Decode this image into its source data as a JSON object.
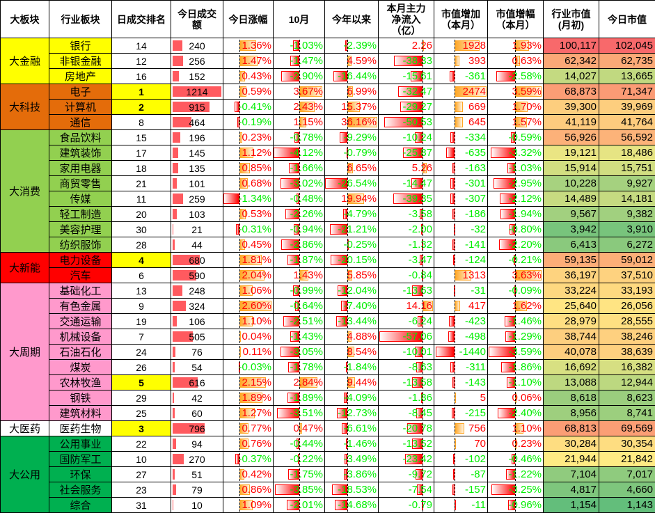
{
  "headers": [
    "大板块",
    "行业板块",
    "日成交排名",
    "今日成交\n额",
    "今日涨幅",
    "10月",
    "今年以来",
    "本月主力\n净流入\n（亿）",
    "市值增加\n（本月）",
    "市值增幅\n（本月）",
    "行业市值\n(月初)",
    "今日市值"
  ],
  "colors": {
    "positive": "#ff0000",
    "negative": "#00ee00",
    "top5_rank": "#ffff00",
    "volume_bar": "#ff5a5f",
    "pos_bar": "#ffa726",
    "neg_bar": "#ff0000",
    "heat_low": "#63be7b",
    "heat_mid": "#ffeb84",
    "heat_high": "#f8696b"
  },
  "groups": [
    {
      "name": "大金融",
      "color": "#ffff00",
      "rows": [
        {
          "name": "银行",
          "rank": 14,
          "vol": 240,
          "today": "1.36%",
          "oct": "-1.03%",
          "ytd": "-2.39%",
          "flow": "2.26",
          "mcap_add": "1928",
          "mcap_pct": "1.93%",
          "mcap_start": "100,117",
          "mcap_now": "102,045"
        },
        {
          "name": "非银金融",
          "rank": 12,
          "vol": 256,
          "today": "1.47%",
          "oct": "-1.47%",
          "ytd": "4.59%",
          "flow": "-38.33",
          "mcap_add": "393",
          "mcap_pct": "0.63%",
          "mcap_start": "62,342",
          "mcap_now": "62,735"
        },
        {
          "name": "房地产",
          "rank": 16,
          "vol": 152,
          "today": "0.43%",
          "oct": "-2.90%",
          "ytd": "-16.44%",
          "flow": "-15.61",
          "mcap_add": "-361",
          "mcap_pct": "-2.58%",
          "mcap_start": "14,027",
          "mcap_now": "13,665"
        }
      ]
    },
    {
      "name": "大科技",
      "color": "#e46c0a",
      "rows": [
        {
          "name": "电子",
          "rank": 1,
          "vol": 1214,
          "today": "0.59%",
          "oct": "3.67%",
          "ytd": "6.99%",
          "flow": "-32.47",
          "mcap_add": "2474",
          "mcap_pct": "3.59%",
          "mcap_start": "68,873",
          "mcap_now": "71,347"
        },
        {
          "name": "计算机",
          "rank": 2,
          "vol": 915,
          "today": "-0.41%",
          "oct": "2.43%",
          "ytd": "15.37%",
          "flow": "-29.27",
          "mcap_add": "669",
          "mcap_pct": "1.70%",
          "mcap_start": "39,300",
          "mcap_now": "39,969"
        },
        {
          "name": "通信",
          "rank": 8,
          "vol": 464,
          "today": "-0.19%",
          "oct": "1.15%",
          "ytd": "36.16%",
          "flow": "-50.53",
          "mcap_add": "645",
          "mcap_pct": "1.57%",
          "mcap_start": "41,119",
          "mcap_now": "41,764"
        }
      ]
    },
    {
      "name": "大消费",
      "color": "#92d050",
      "rows": [
        {
          "name": "食品饮料",
          "rank": 15,
          "vol": 196,
          "today": "0.23%",
          "oct": "-0.78%",
          "ytd": "-9.29%",
          "flow": "-10.24",
          "mcap_add": "-334",
          "mcap_pct": "-0.59%",
          "mcap_start": "56,926",
          "mcap_now": "56,592"
        },
        {
          "name": "建筑装饰",
          "rank": 17,
          "vol": 145,
          "today": "1.12%",
          "oct": "-4.12%",
          "ytd": "-0.79%",
          "flow": "-25.87",
          "mcap_add": "-635",
          "mcap_pct": "-3.32%",
          "mcap_start": "19,121",
          "mcap_now": "18,486"
        },
        {
          "name": "家用电器",
          "rank": 18,
          "vol": 135,
          "today": "0.85%",
          "oct": "-1.66%",
          "ytd": "6.65%",
          "flow": "5.26",
          "mcap_add": "-163",
          "mcap_pct": "-1.03%",
          "mcap_start": "15,914",
          "mcap_now": "15,751"
        },
        {
          "name": "商贸零售",
          "rank": 21,
          "vol": 101,
          "today": "0.68%",
          "oct": "-3.02%",
          "ytd": "-26.54%",
          "flow": "-14.47",
          "mcap_add": "-301",
          "mcap_pct": "-2.95%",
          "mcap_start": "10,228",
          "mcap_now": "9,927"
        },
        {
          "name": "传媒",
          "rank": 11,
          "vol": 259,
          "today": "-1.34%",
          "oct": "-0.48%",
          "ytd": "19.94%",
          "flow": "-39.35",
          "mcap_add": "-307",
          "mcap_pct": "-2.12%",
          "mcap_start": "14,489",
          "mcap_now": "14,181"
        },
        {
          "name": "轻工制造",
          "rank": 20,
          "vol": 103,
          "today": "0.53%",
          "oct": "-2.26%",
          "ytd": "-4.79%",
          "flow": "-3.58",
          "mcap_add": "-186",
          "mcap_pct": "-1.94%",
          "mcap_start": "9,567",
          "mcap_now": "9,382"
        },
        {
          "name": "美容护理",
          "rank": 30,
          "vol": 21,
          "today": "-0.31%",
          "oct": "-0.94%",
          "ytd": "-21.21%",
          "flow": "-2.00",
          "mcap_add": "-32",
          "mcap_pct": "-0.80%",
          "mcap_start": "3,942",
          "mcap_now": "3,910"
        },
        {
          "name": "纺织服饰",
          "rank": 28,
          "vol": 44,
          "today": "0.45%",
          "oct": "-2.86%",
          "ytd": "-0.25%",
          "flow": "-1.32",
          "mcap_add": "-141",
          "mcap_pct": "-2.20%",
          "mcap_start": "6,413",
          "mcap_now": "6,272"
        }
      ]
    },
    {
      "name": "大新能",
      "color": "#ff0000",
      "rows": [
        {
          "name": "电力设备",
          "rank": 4,
          "vol": 680,
          "today": "1.81%",
          "oct": "-1.87%",
          "ytd": "-20.15%",
          "flow": "-3.47",
          "mcap_add": "-124",
          "mcap_pct": "-0.21%",
          "mcap_start": "59,135",
          "mcap_now": "59,012"
        },
        {
          "name": "汽车",
          "rank": 6,
          "vol": 590,
          "today": "2.04%",
          "oct": "1.43%",
          "ytd": "5.85%",
          "flow": "-0.84",
          "mcap_add": "1313",
          "mcap_pct": "3.63%",
          "mcap_start": "36,197",
          "mcap_now": "37,510"
        }
      ]
    },
    {
      "name": "大周期",
      "color": "#ff99cc",
      "rows": [
        {
          "name": "基础化工",
          "rank": 13,
          "vol": 248,
          "today": "1.06%",
          "oct": "-0.99%",
          "ytd": "-12.04%",
          "flow": "-13.63",
          "mcap_add": "-31",
          "mcap_pct": "-0.09%",
          "mcap_start": "33,224",
          "mcap_now": "33,193"
        },
        {
          "name": "有色金属",
          "rank": 9,
          "vol": 324,
          "today": "2.60%",
          "oct": "-0.64%",
          "ytd": "-7.40%",
          "flow": "14.16",
          "mcap_add": "417",
          "mcap_pct": "1.62%",
          "mcap_start": "25,640",
          "mcap_now": "26,056"
        },
        {
          "name": "交通运输",
          "rank": 19,
          "vol": 106,
          "today": "1.10%",
          "oct": "-2.51%",
          "ytd": "-13.44%",
          "flow": "-6.24",
          "mcap_add": "-423",
          "mcap_pct": "-1.46%",
          "mcap_start": "28,979",
          "mcap_now": "28,555"
        },
        {
          "name": "机械设备",
          "rank": 7,
          "vol": 505,
          "today": "0.04%",
          "oct": "-1.43%",
          "ytd": "4.88%",
          "flow": "-57.06",
          "mcap_add": "-498",
          "mcap_pct": "-1.29%",
          "mcap_start": "38,744",
          "mcap_now": "38,246"
        },
        {
          "name": "石油石化",
          "rank": 24,
          "vol": 76,
          "today": "0.11%",
          "oct": "-3.05%",
          "ytd": "8.54%",
          "flow": "-10.01",
          "mcap_add": "-1440",
          "mcap_pct": "-3.59%",
          "mcap_start": "40,078",
          "mcap_now": "38,639"
        },
        {
          "name": "煤炭",
          "rank": 26,
          "vol": 54,
          "today": "-0.03%",
          "oct": "-1.78%",
          "ytd": "-1.84%",
          "flow": "-8.63",
          "mcap_add": "-311",
          "mcap_pct": "-1.86%",
          "mcap_start": "16,692",
          "mcap_now": "16,382"
        },
        {
          "name": "农林牧渔",
          "rank": 5,
          "vol": 616,
          "today": "2.15%",
          "oct": "2.84%",
          "ytd": "9.44%",
          "flow": "-13.58",
          "mcap_add": "-143",
          "mcap_pct": "-1.10%",
          "mcap_start": "13,088",
          "mcap_now": "12,944"
        },
        {
          "name": "钢铁",
          "rank": 29,
          "vol": 42,
          "today": "1.89%",
          "oct": "-1.89%",
          "ytd": "-4.09%",
          "flow": "-1.86",
          "mcap_add": "5",
          "mcap_pct": "0.06%",
          "mcap_start": "8,618",
          "mcap_now": "8,623"
        },
        {
          "name": "建筑材料",
          "rank": 25,
          "vol": 60,
          "today": "1.27%",
          "oct": "-3.51%",
          "ytd": "-12.73%",
          "flow": "-8.45",
          "mcap_add": "-215",
          "mcap_pct": "-2.40%",
          "mcap_start": "8,956",
          "mcap_now": "8,741"
        }
      ]
    },
    {
      "name": "大医药",
      "color": "#ffffff",
      "rows": [
        {
          "name": "医药生物",
          "rank": 3,
          "vol": 796,
          "today": "0.77%",
          "oct": "0.47%",
          "ytd": "-6.61%",
          "flow": "-20.78",
          "mcap_add": "756",
          "mcap_pct": "1.10%",
          "mcap_start": "68,813",
          "mcap_now": "69,569"
        }
      ]
    },
    {
      "name": "大公用",
      "color": "#00b050",
      "rows": [
        {
          "name": "公用事业",
          "rank": 22,
          "vol": 94,
          "today": "0.76%",
          "oct": "-0.44%",
          "ytd": "-1.46%",
          "flow": "-13.52",
          "mcap_add": "70",
          "mcap_pct": "0.23%",
          "mcap_start": "30,284",
          "mcap_now": "30,354"
        },
        {
          "name": "国防军工",
          "rank": 10,
          "vol": 270,
          "today": "-0.37%",
          "oct": "-0.22%",
          "ytd": "-3.49%",
          "flow": "-23.42",
          "mcap_add": "-102",
          "mcap_pct": "-0.46%",
          "mcap_start": "21,944",
          "mcap_now": "21,842"
        },
        {
          "name": "环保",
          "rank": 27,
          "vol": 51,
          "today": "0.42%",
          "oct": "-1.75%",
          "ytd": "-3.86%",
          "flow": "-9.72",
          "mcap_add": "-87",
          "mcap_pct": "-1.22%",
          "mcap_start": "7,104",
          "mcap_now": "7,017"
        },
        {
          "name": "社会服务",
          "rank": 23,
          "vol": 79,
          "today": "0.86%",
          "oct": "-3.85%",
          "ytd": "-18.53%",
          "flow": "-7.54",
          "mcap_add": "-157",
          "mcap_pct": "-3.25%",
          "mcap_start": "4,817",
          "mcap_now": "4,660"
        },
        {
          "name": "综合",
          "rank": 31,
          "vol": 10,
          "today": "1.09%",
          "oct": "-2.01%",
          "ytd": "-14.68%",
          "flow": "-0.79",
          "mcap_add": "-11",
          "mcap_pct": "-0.96%",
          "mcap_start": "1,154",
          "mcap_now": "1,143"
        }
      ]
    }
  ]
}
